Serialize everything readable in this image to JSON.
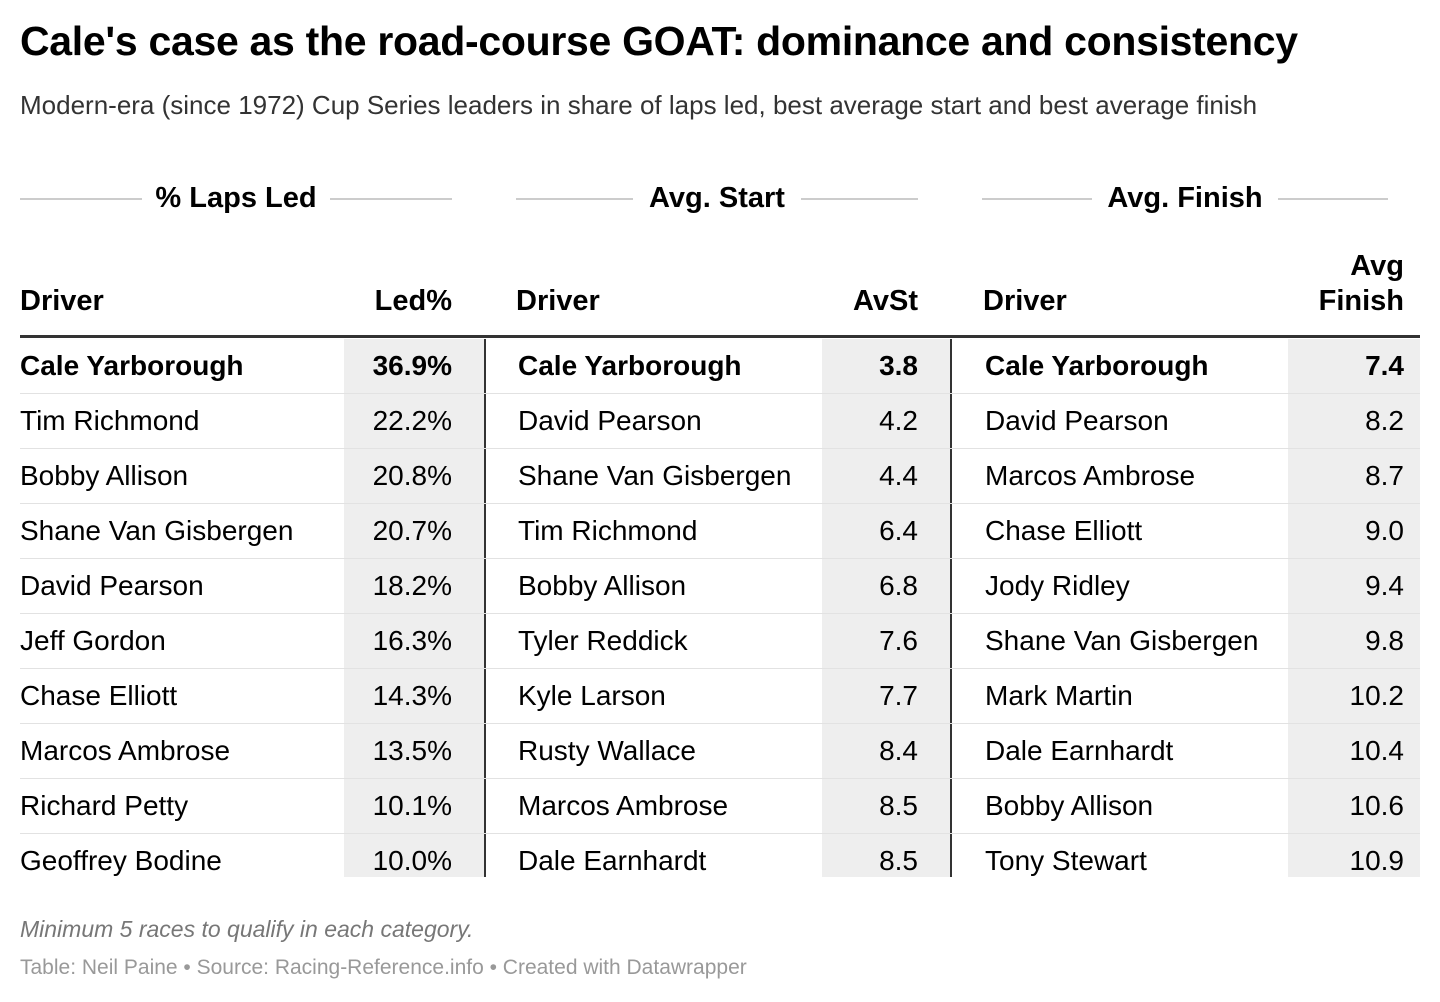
{
  "title": "Cale's case as the road-course GOAT: dominance and consistency",
  "subtitle": "Modern-era (since 1972) Cup Series leaders in share of laps led, best average start and best average finish",
  "chart_data": {
    "type": "table",
    "groups": [
      {
        "title": "% Laps Led",
        "columns": [
          "Driver",
          "Led%"
        ],
        "rows": [
          {
            "driver": "Cale Yarborough",
            "value": "36.9%"
          },
          {
            "driver": "Tim Richmond",
            "value": "22.2%"
          },
          {
            "driver": "Bobby Allison",
            "value": "20.8%"
          },
          {
            "driver": "Shane Van Gisbergen",
            "value": "20.7%"
          },
          {
            "driver": "David Pearson",
            "value": "18.2%"
          },
          {
            "driver": "Jeff Gordon",
            "value": "16.3%"
          },
          {
            "driver": "Chase Elliott",
            "value": "14.3%"
          },
          {
            "driver": "Marcos Ambrose",
            "value": "13.5%"
          },
          {
            "driver": "Richard Petty",
            "value": "10.1%"
          },
          {
            "driver": "Geoffrey Bodine",
            "value": "10.0%"
          }
        ]
      },
      {
        "title": "Avg. Start",
        "columns": [
          "Driver",
          "AvSt"
        ],
        "rows": [
          {
            "driver": "Cale Yarborough",
            "value": "3.8"
          },
          {
            "driver": "David Pearson",
            "value": "4.2"
          },
          {
            "driver": "Shane Van Gisbergen",
            "value": "4.4"
          },
          {
            "driver": "Tim Richmond",
            "value": "6.4"
          },
          {
            "driver": "Bobby Allison",
            "value": "6.8"
          },
          {
            "driver": "Tyler Reddick",
            "value": "7.6"
          },
          {
            "driver": "Kyle Larson",
            "value": "7.7"
          },
          {
            "driver": "Rusty Wallace",
            "value": "8.4"
          },
          {
            "driver": "Marcos Ambrose",
            "value": "8.5"
          },
          {
            "driver": "Dale Earnhardt",
            "value": "8.5"
          }
        ]
      },
      {
        "title": "Avg. Finish",
        "columns": [
          "Driver",
          "Avg",
          "Finish"
        ],
        "rows": [
          {
            "driver": "Cale Yarborough",
            "value": "7.4"
          },
          {
            "driver": "David Pearson",
            "value": "8.2"
          },
          {
            "driver": "Marcos Ambrose",
            "value": "8.7"
          },
          {
            "driver": "Chase Elliott",
            "value": "9.0"
          },
          {
            "driver": "Jody Ridley",
            "value": "9.4"
          },
          {
            "driver": "Shane Van Gisbergen",
            "value": "9.8"
          },
          {
            "driver": "Mark Martin",
            "value": "10.2"
          },
          {
            "driver": "Dale Earnhardt",
            "value": "10.4"
          },
          {
            "driver": "Bobby Allison",
            "value": "10.6"
          },
          {
            "driver": "Tony Stewart",
            "value": "10.9"
          }
        ]
      }
    ],
    "highlight_driver": "Cale Yarborough"
  },
  "notes": "Minimum 5 races to qualify in each category.",
  "credit": "Table: Neil Paine • Source: Racing-Reference.info • Created with Datawrapper",
  "colors": {
    "highlight_shading": "#eeeeee",
    "rule": "#333333",
    "row_divider": "#e2e2e2",
    "note_text": "#777777",
    "credit_text": "#999999"
  }
}
